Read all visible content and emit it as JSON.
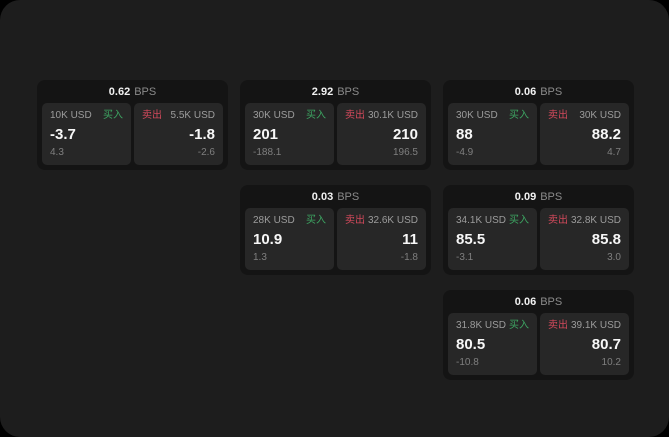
{
  "colors": {
    "buy": "#3fa45e",
    "buy_text": "#3da562",
    "sell_text": "#d2495b",
    "window_bg": "#1d1d1d",
    "card_bg": "#141414",
    "tile_bg": "#272727"
  },
  "labels": {
    "buy": "买入",
    "sell": "卖出",
    "bps_unit": "BPS"
  },
  "cards": [
    {
      "row": 1,
      "col": 1,
      "bps": "0.62",
      "buy": {
        "size": "10K USD",
        "price": "-3.7",
        "delta": "4.3"
      },
      "sell": {
        "size": "5.5K USD",
        "price": "-1.8",
        "delta": "-2.6"
      }
    },
    {
      "row": 1,
      "col": 2,
      "bps": "2.92",
      "buy": {
        "size": "30K USD",
        "price": "201",
        "delta": "-188.1"
      },
      "sell": {
        "size": "30.1K USD",
        "price": "210",
        "delta": "196.5"
      }
    },
    {
      "row": 1,
      "col": 3,
      "bps": "0.06",
      "buy": {
        "size": "30K USD",
        "price": "88",
        "delta": "-4.9"
      },
      "sell": {
        "size": "30K USD",
        "price": "88.2",
        "delta": "4.7"
      }
    },
    {
      "row": 2,
      "col": 2,
      "bps": "0.03",
      "buy": {
        "size": "28K USD",
        "price": "10.9",
        "delta": "1.3"
      },
      "sell": {
        "size": "32.6K USD",
        "price": "11",
        "delta": "-1.8"
      }
    },
    {
      "row": 2,
      "col": 3,
      "bps": "0.09",
      "buy": {
        "size": "34.1K USD",
        "price": "85.5",
        "delta": "-3.1"
      },
      "sell": {
        "size": "32.8K USD",
        "price": "85.8",
        "delta": "3.0"
      }
    },
    {
      "row": 3,
      "col": 3,
      "bps": "0.06",
      "buy": {
        "size": "31.8K USD",
        "price": "80.5",
        "delta": "-10.8"
      },
      "sell": {
        "size": "39.1K USD",
        "price": "80.7",
        "delta": "10.2"
      }
    }
  ]
}
